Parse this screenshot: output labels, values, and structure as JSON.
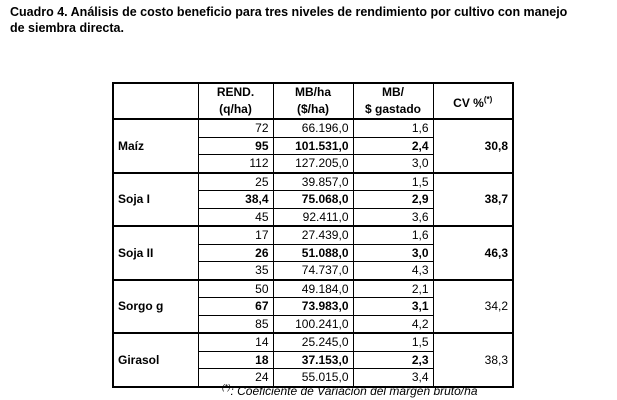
{
  "header": {
    "title_line1": "Cuadro 4. Análisis de costo beneficio para tres niveles de rendimiento por cultivo con manejo",
    "title_line2": "de siembra directa."
  },
  "table": {
    "columns": [
      {
        "line1": "REND.",
        "line2": "(q/ha)"
      },
      {
        "line1": "MB/ha",
        "line2": "($/ha)"
      },
      {
        "line1": "MB/",
        "line2": "$ gastado"
      },
      {
        "line1": "CV  %",
        "sup": "(*)"
      }
    ],
    "groups": [
      {
        "crop": "Maíz",
        "cv": "30,8",
        "cv_bold": true,
        "rows": [
          [
            "72",
            "66.196,0",
            "1,6"
          ],
          [
            "95",
            "101.531,0",
            "2,4"
          ],
          [
            "112",
            "127.205,0",
            "3,0"
          ]
        ]
      },
      {
        "crop": "Soja I",
        "cv": "38,7",
        "cv_bold": true,
        "rows": [
          [
            "25",
            "39.857,0",
            "1,5"
          ],
          [
            "38,4",
            "75.068,0",
            "2,9"
          ],
          [
            "45",
            "92.411,0",
            "3,6"
          ]
        ]
      },
      {
        "crop": "Soja II",
        "cv": "46,3",
        "cv_bold": true,
        "rows": [
          [
            "17",
            "27.439,0",
            "1,6"
          ],
          [
            "26",
            "51.088,0",
            "3,0"
          ],
          [
            "35",
            "74.737,0",
            "4,3"
          ]
        ]
      },
      {
        "crop": "Sorgo g",
        "cv": "34,2",
        "cv_bold": false,
        "rows": [
          [
            "50",
            "49.184,0",
            "2,1"
          ],
          [
            "67",
            "73.983,0",
            "3,1"
          ],
          [
            "85",
            "100.241,0",
            "4,2"
          ]
        ]
      },
      {
        "crop": "Girasol",
        "cv": "38,3",
        "cv_bold": false,
        "rows": [
          [
            "14",
            "25.245,0",
            "1,5"
          ],
          [
            "18",
            "37.153,0",
            "2,3"
          ],
          [
            "24",
            "55.015,0",
            "3,4"
          ]
        ]
      }
    ]
  },
  "footnote": {
    "sup": "(*)",
    "text": ": Coeficiente de Variación  del margen bruto/ha"
  }
}
